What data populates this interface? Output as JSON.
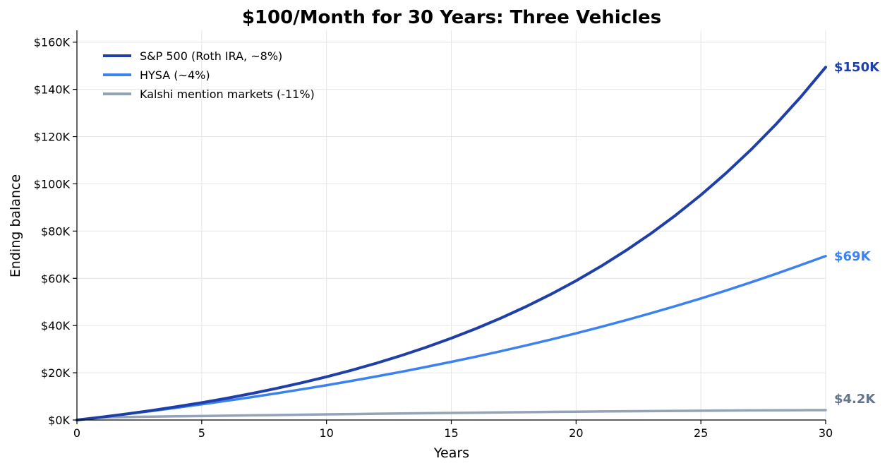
{
  "chart_data": {
    "type": "line",
    "title": "$100/Month for 30 Years: Three Vehicles",
    "xlabel": "Years",
    "ylabel": "Ending balance",
    "xlim": [
      0,
      30
    ],
    "ylim": [
      0,
      165000
    ],
    "x_ticks": [
      0,
      5,
      10,
      15,
      20,
      25,
      30
    ],
    "x_tick_labels": [
      "0",
      "5",
      "10",
      "15",
      "20",
      "25",
      "30"
    ],
    "y_ticks": [
      0,
      20000,
      40000,
      60000,
      80000,
      100000,
      120000,
      140000,
      160000
    ],
    "y_tick_labels": [
      "$0K",
      "$20K",
      "$40K",
      "$60K",
      "$80K",
      "$100K",
      "$120K",
      "$140K",
      "$160K"
    ],
    "grid": true,
    "legend_position": "top-left",
    "x": [
      0,
      1,
      2,
      3,
      4,
      5,
      6,
      7,
      8,
      9,
      10,
      11,
      12,
      13,
      14,
      15,
      16,
      17,
      18,
      19,
      20,
      21,
      22,
      23,
      24,
      25,
      26,
      27,
      28,
      29,
      30
    ],
    "series": [
      {
        "name": "S&P 500 (Roth IRA, ~8%)",
        "color": "#1f3fa8",
        "values": [
          0,
          1245,
          2594,
          4054,
          5635,
          7348,
          9202,
          11210,
          13385,
          15740,
          18295,
          21060,
          24060,
          27310,
          30820,
          34625,
          38750,
          43215,
          48050,
          53290,
          58970,
          65120,
          71780,
          78995,
          86810,
          95280,
          104450,
          114380,
          125140,
          136790,
          149400
        ],
        "end_label": "$150K"
      },
      {
        "name": "HYSA (~4%)",
        "color": "#3b82f0",
        "values": [
          0,
          1222,
          2494,
          3818,
          5196,
          6630,
          8123,
          9677,
          11294,
          12978,
          14730,
          16554,
          18452,
          20428,
          22484,
          24625,
          26853,
          29172,
          31586,
          34098,
          36713,
          39434,
          42267,
          45214,
          48283,
          51476,
          54800,
          58259,
          61860,
          65608,
          69410
        ],
        "end_label": "$69K"
      },
      {
        "name": "Kalshi mention markets (-11%)",
        "color": "#94a3b8",
        "values": [
          0,
          1130,
          1270,
          1410,
          1550,
          1690,
          1830,
          1970,
          2110,
          2250,
          2390,
          2520,
          2640,
          2760,
          2880,
          3000,
          3110,
          3220,
          3320,
          3420,
          3520,
          3610,
          3700,
          3780,
          3860,
          3930,
          4000,
          4060,
          4110,
          4160,
          4200
        ],
        "end_label": "$4.2K"
      }
    ],
    "end_label_colors": [
      "#1f3fa8",
      "#3b82f0",
      "#64748b"
    ]
  }
}
